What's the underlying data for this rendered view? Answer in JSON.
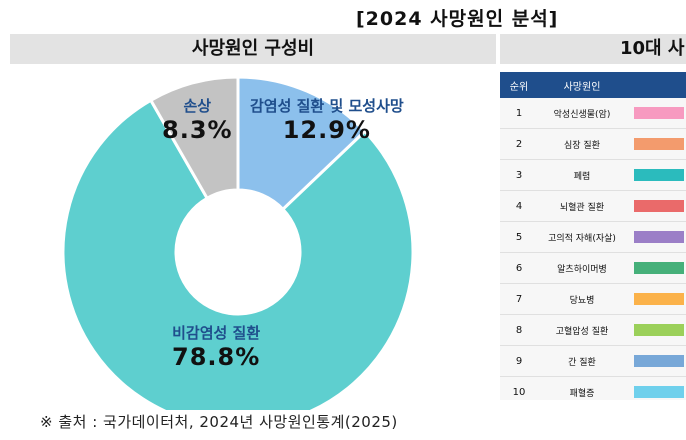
{
  "page_title": "[2024 사망원인 분석]",
  "left_panel": {
    "header": "사망원인 구성비"
  },
  "right_panel": {
    "header": "10대 사",
    "table": {
      "columns": [
        "순위",
        "사망원인"
      ],
      "rows": [
        {
          "rank": "1",
          "cause": "악성신생물(암)",
          "color": "#f79ac0"
        },
        {
          "rank": "2",
          "cause": "심장 질환",
          "color": "#f39b6d"
        },
        {
          "rank": "3",
          "cause": "폐렴",
          "color": "#2bbbbd"
        },
        {
          "rank": "4",
          "cause": "뇌혈관 질환",
          "color": "#ea6a6a"
        },
        {
          "rank": "5",
          "cause": "고의적 자해(자살)",
          "color": "#9b7fc7"
        },
        {
          "rank": "6",
          "cause": "알츠하이머병",
          "color": "#46b07a"
        },
        {
          "rank": "7",
          "cause": "당뇨병",
          "color": "#fbb24a"
        },
        {
          "rank": "8",
          "cause": "고혈압성 질환",
          "color": "#9bd05a"
        },
        {
          "rank": "9",
          "cause": "간 질환",
          "color": "#78a8d8"
        },
        {
          "rank": "10",
          "cause": "패혈증",
          "color": "#6fd0ec"
        }
      ]
    }
  },
  "chart_data": {
    "type": "pie",
    "title": "사망원인 구성비",
    "donut": true,
    "slices": [
      {
        "label": "감염성 질환 및 모성사망",
        "value": 12.9,
        "display": "12.9%",
        "color": "#8cc0ec"
      },
      {
        "label": "비감염성 질환",
        "value": 78.8,
        "display": "78.8%",
        "color": "#5ecfcf"
      },
      {
        "label": "손상",
        "value": 8.3,
        "display": "8.3%",
        "color": "#c3c3c3"
      }
    ]
  },
  "source": "※  출처 : 국가데이터처, 2024년 사망원인통계(2025)"
}
